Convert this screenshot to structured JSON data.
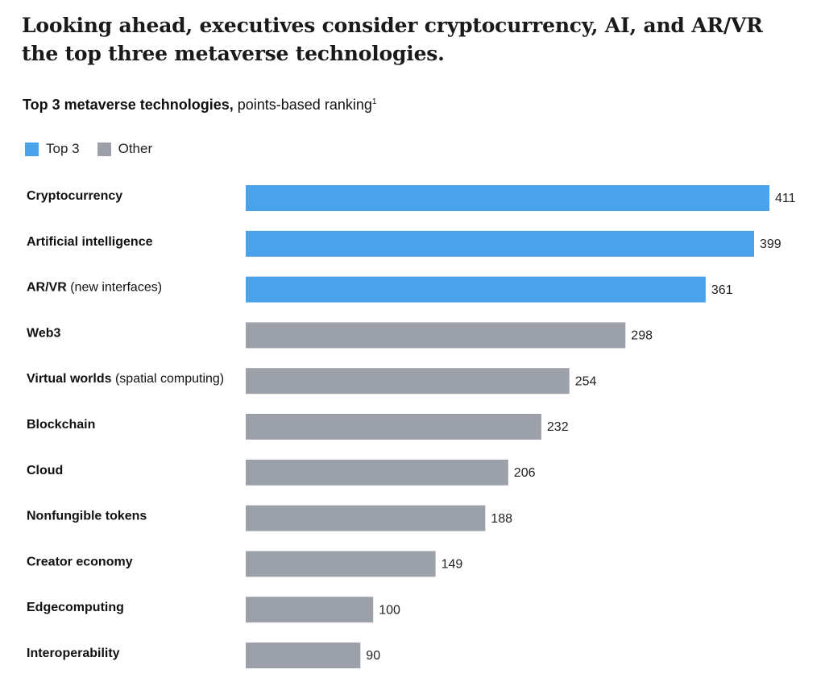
{
  "headline": "Looking ahead, executives consider cryptocurrency, AI, and AR/VR the top three metaverse technologies.",
  "subtitle": {
    "bold": "Top 3 metaverse technologies,",
    "normal": " points-based ranking",
    "footnote": "1"
  },
  "legend": [
    {
      "label": "Top 3",
      "color": "#4aa3ea"
    },
    {
      "label": "Other",
      "color": "#9ca0a8"
    }
  ],
  "chart_data": {
    "type": "bar",
    "orientation": "horizontal",
    "categories": [
      {
        "name": "Cryptocurrency",
        "qualifier": "",
        "value": 411,
        "group": "Top 3"
      },
      {
        "name": "Artificial intelligence",
        "qualifier": "",
        "value": 399,
        "group": "Top 3"
      },
      {
        "name": "AR/VR",
        "qualifier": " (new interfaces)",
        "value": 361,
        "group": "Top 3"
      },
      {
        "name": "Web3",
        "qualifier": "",
        "value": 298,
        "group": "Other"
      },
      {
        "name": "Virtual worlds",
        "qualifier": " (spatial computing)",
        "value": 254,
        "group": "Other"
      },
      {
        "name": "Blockchain",
        "qualifier": "",
        "value": 232,
        "group": "Other"
      },
      {
        "name": "Cloud",
        "qualifier": "",
        "value": 206,
        "group": "Other"
      },
      {
        "name": "Nonfungible tokens",
        "qualifier": "",
        "value": 188,
        "group": "Other"
      },
      {
        "name": "Creator economy",
        "qualifier": "",
        "value": 149,
        "group": "Other"
      },
      {
        "name": "Edgecomputing",
        "qualifier": "",
        "value": 100,
        "group": "Other"
      },
      {
        "name": "Interoperability",
        "qualifier": "",
        "value": 90,
        "group": "Other"
      }
    ],
    "xlim": [
      0,
      411
    ],
    "grid": false,
    "axes_visible": false,
    "legend_position": "top-left",
    "data_labels": true
  }
}
